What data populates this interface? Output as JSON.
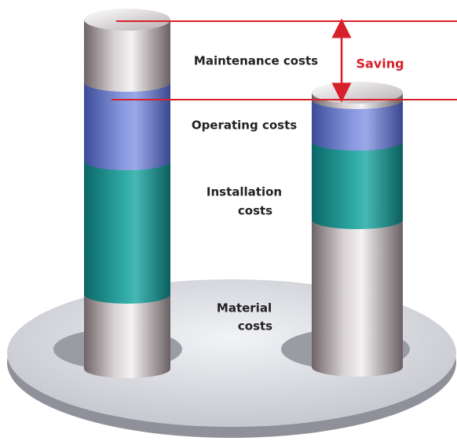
{
  "labels": {
    "maintenance": "Maintenance costs",
    "operating": "Operating costs",
    "installation": [
      "Installation",
      "costs"
    ],
    "material": [
      "Material",
      "costs"
    ],
    "saving": "Saving"
  }
}
